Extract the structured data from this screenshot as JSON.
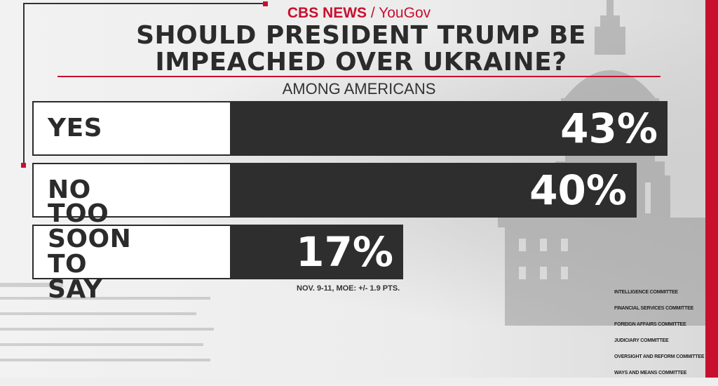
{
  "brand": {
    "network": "CBS NEWS",
    "separator": " / ",
    "partner": "YouGov"
  },
  "colors": {
    "accent": "#c8102e",
    "bar": "#2e2e2e",
    "label_bg": "#ffffff",
    "text_dark": "#2b2b2b"
  },
  "chart_data": {
    "type": "bar",
    "orientation": "horizontal",
    "title": "SHOULD PRESIDENT TRUMP BE IMPEACHED OVER UKRAINE?",
    "title_lines": [
      "SHOULD PRESIDENT TRUMP BE",
      "IMPEACHED OVER UKRAINE?"
    ],
    "subtitle": "AMONG AMERICANS",
    "categories": [
      "YES",
      "NO",
      "TOO SOON TO SAY"
    ],
    "category_lines": [
      [
        "YES"
      ],
      [
        "NO"
      ],
      [
        "TOO SOON",
        "TO SAY"
      ]
    ],
    "values": [
      43,
      40,
      17
    ],
    "value_labels": [
      "43%",
      "40%",
      "17%"
    ],
    "unit": "%",
    "grid": false,
    "legend": "none"
  },
  "note": "NOV. 9-11, MOE: +/- 1.9 PTS.",
  "committees": [
    "INTELLIGENCE COMMITTEE",
    "FINANCIAL SERVICES COMMITTEE",
    "FOREIGN AFFAIRS COMMITTEE",
    "JUDICIARY COMMITTEE",
    "OVERSIGHT AND REFORM COMMITTEE",
    "WAYS AND MEANS COMMITTEE"
  ]
}
